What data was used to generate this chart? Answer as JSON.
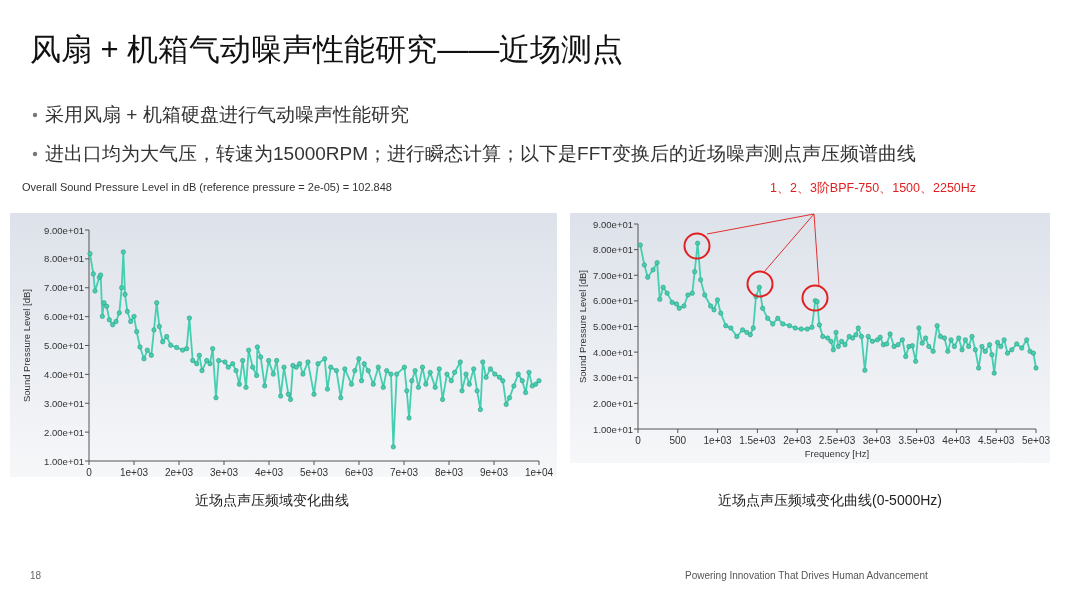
{
  "chart_data": [
    {
      "type": "line",
      "title": "风扇 + 机箱气动噪声性能研究——近场测点",
      "ylabel": "Sound Pressure Level [dB]",
      "annotations": [
        "采用风扇 + 机箱硬盘进行气动噪声性能研究",
        "进出口均为大气压，转速为15000RPM；进行瞬态计算；以下是FFT变换后的近场噪声测点声压频谱曲线",
        "Overall Sound Pressure Level in dB (reference pressure = 2e-05) = 102.848",
        "近场点声压频域变化曲线",
        "18",
        "Powering Innovation That Drives Human Advancement"
      ],
      "x": [
        22,
        96,
        133,
        230,
        259,
        296,
        333,
        393,
        452,
        526,
        600,
        674,
        726,
        763,
        800,
        852,
        926,
        1000,
        1059,
        1133,
        1222,
        1296,
        1385,
        1444,
        1504,
        1563,
        1637,
        1726,
        1815,
        1948,
        2081,
        2170,
        2230,
        2304,
        2393,
        2452,
        2511,
        2615,
        2689,
        2748,
        2822,
        2881,
        3022,
        3096,
        3193,
        3267,
        3341,
        3415,
        3489,
        3548,
        3637,
        3726,
        3741,
        3815,
        3904,
        3993,
        4096,
        4170,
        4259,
        4333,
        4430,
        4479,
        4531,
        4606,
        4680,
        4754,
        4866,
        5000,
        5089,
        5238,
        5298,
        5372,
        5498,
        5595,
        5685,
        5833,
        5908,
        5997,
        6057,
        6116,
        6205,
        6317,
        6429,
        6540,
        6615,
        6711,
        6763,
        6838,
        7009,
        7061,
        7113,
        7173,
        7247,
        7321,
        7411,
        7485,
        7582,
        7693,
        7783,
        7857,
        7954,
        8051,
        8125,
        8251,
        8289,
        8378,
        8452,
        8549,
        8624,
        8698,
        8750,
        8824,
        8921,
        9018,
        9122,
        9196,
        9271,
        9345,
        9442,
        9539,
        9628,
        9702,
        9777,
        9851,
        9926,
        10000
      ],
      "series": [
        {
          "color": "#45cfb0",
          "values": [
            81.8,
            74.8,
            68.9,
            73.6,
            74.4,
            60.1,
            64.8,
            63.6,
            58.9,
            57.2,
            58.3,
            61.3,
            70,
            82.4,
            67.7,
            61.8,
            58.3,
            60.1,
            54.8,
            49.5,
            45.4,
            48.4,
            46.6,
            55.4,
            64.8,
            56.6,
            51.3,
            53.1,
            50.1,
            49.3,
            48.4,
            48.9,
            59.5,
            44.8,
            43.7,
            46.6,
            41.3,
            44.8,
            43.7,
            48.9,
            31.9,
            44.8,
            44.3,
            42.5,
            43.7,
            41.3,
            36.6,
            44.8,
            35.5,
            48.4,
            42.5,
            39.6,
            49.5,
            46,
            36,
            44.8,
            40.1,
            44.8,
            32.5,
            42.5,
            33.1,
            31.3,
            43.1,
            42.5,
            43.7,
            40.1,
            44.3,
            33.1,
            43.7,
            45.4,
            34.9,
            42.5,
            41.3,
            31.9,
            41.9,
            36.6,
            41.3,
            45.4,
            37.8,
            43.7,
            41.3,
            36.6,
            42.5,
            35.5,
            41.3,
            40.1,
            14.9,
            40.1,
            42.5,
            34.3,
            24.9,
            37.8,
            41.3,
            35.5,
            42.5,
            36.6,
            40.7,
            35.5,
            41.9,
            31.3,
            40.1,
            37.8,
            40.7,
            44.3,
            34.3,
            40.1,
            36.6,
            41.9,
            34.3,
            27.8,
            44.3,
            39,
            41.9,
            40.1,
            39,
            37.8,
            29.6,
            31.9,
            36,
            40.1,
            37.8,
            33.7,
            40.7,
            36,
            36.6,
            37.8
          ]
        }
      ],
      "xlim": [
        0,
        10000
      ],
      "ylim": [
        10,
        90
      ],
      "xticks": [
        {
          "value": 0,
          "label": "0"
        },
        {
          "value": 1000,
          "label": "1e+03"
        },
        {
          "value": 2000,
          "label": "2e+03"
        },
        {
          "value": 3000,
          "label": "3e+03"
        },
        {
          "value": 4000,
          "label": "4e+03"
        },
        {
          "value": 5000,
          "label": "5e+03"
        },
        {
          "value": 6000,
          "label": "6e+03"
        },
        {
          "value": 7000,
          "label": "7e+03"
        },
        {
          "value": 8000,
          "label": "8e+03"
        },
        {
          "value": 9000,
          "label": "9e+03"
        },
        {
          "value": 10000,
          "label": "1e+04"
        }
      ],
      "yticks": [
        {
          "value": 10,
          "label": "1.00e+01"
        },
        {
          "value": 20,
          "label": "2.00e+01"
        },
        {
          "value": 30,
          "label": "3.00e+01"
        },
        {
          "value": 40,
          "label": "4.00e+01"
        },
        {
          "value": 50,
          "label": "5.00e+01"
        },
        {
          "value": 60,
          "label": "6.00e+01"
        },
        {
          "value": 70,
          "label": "7.00e+01"
        },
        {
          "value": 80,
          "label": "8.00e+01"
        },
        {
          "value": 90,
          "label": "9.00e+01"
        }
      ],
      "marker": "circle"
    },
    {
      "type": "line",
      "xlabel": "Frequency [Hz]",
      "ylabel": "Sound Pressure Level [dB]",
      "annotations": [
        "1、2、3阶BPF-750、1500、2250Hz",
        "近场点声压频域变化曲线(0-5000Hz)"
      ],
      "x": [
        29,
        80,
        122,
        189,
        240,
        274,
        316,
        366,
        429,
        484,
        518,
        577,
        627,
        682,
        712,
        749,
        787,
        838,
        912,
        955,
        998,
        1040,
        1103,
        1166,
        1242,
        1314,
        1368,
        1411,
        1448,
        1482,
        1524,
        1566,
        1629,
        1693,
        1756,
        1819,
        1903,
        1975,
        2051,
        2126,
        2185,
        2227,
        2250,
        2279,
        2321,
        2383,
        2425,
        2454,
        2488,
        2517,
        2558,
        2600,
        2654,
        2696,
        2738,
        2767,
        2808,
        2850,
        2892,
        2946,
        3008,
        3042,
        3083,
        3125,
        3167,
        3217,
        3267,
        3321,
        3363,
        3404,
        3446,
        3488,
        3529,
        3571,
        3613,
        3654,
        3708,
        3758,
        3800,
        3850,
        3892,
        3933,
        3975,
        4029,
        4071,
        4113,
        4154,
        4196,
        4238,
        4279,
        4321,
        4363,
        4417,
        4446,
        4475,
        4517,
        4558,
        4600,
        4642,
        4696,
        4758,
        4821,
        4883,
        4925,
        4967,
        5000
      ],
      "series": [
        {
          "color": "#45cfb0",
          "values": [
            81.8,
            74,
            69.2,
            72.1,
            74.9,
            60.6,
            65.3,
            63,
            59.4,
            58.8,
            57.1,
            58,
            62.3,
            63,
            71.4,
            82.5,
            68.2,
            62.3,
            58,
            56.5,
            60.4,
            55.2,
            50.3,
            49.4,
            46.1,
            48.7,
            47.7,
            46.8,
            49.4,
            61.7,
            65.3,
            57.1,
            53.2,
            51,
            53.2,
            51,
            50.3,
            49.4,
            49,
            49,
            49.7,
            60.1,
            59.7,
            50.6,
            46.1,
            45.5,
            44.2,
            40.9,
            47.7,
            42.2,
            44.2,
            42.9,
            46.1,
            45.5,
            46.8,
            49.4,
            46.1,
            32.9,
            46.1,
            44.2,
            44.8,
            45.8,
            42.9,
            43.2,
            47.1,
            42.2,
            42.9,
            44.8,
            38.3,
            42.2,
            42.5,
            36.4,
            49.4,
            43.5,
            45.5,
            42.2,
            40.3,
            50.3,
            46.1,
            45.5,
            40.3,
            44.8,
            42.2,
            45.5,
            40.9,
            44.8,
            42.2,
            46.1,
            40.9,
            33.8,
            42.2,
            40.3,
            42.9,
            39,
            31.8,
            43.8,
            42.2,
            44.8,
            39.6,
            40.9,
            43.2,
            41.6,
            44.8,
            40.3,
            39.6,
            33.8
          ]
        }
      ],
      "xlim": [
        0,
        5000
      ],
      "ylim": [
        10,
        90
      ],
      "xticks": [
        {
          "value": 0,
          "label": "0"
        },
        {
          "value": 500,
          "label": "500"
        },
        {
          "value": 1000,
          "label": "1e+03"
        },
        {
          "value": 1500,
          "label": "1.5e+03"
        },
        {
          "value": 2000,
          "label": "2e+03"
        },
        {
          "value": 2500,
          "label": "2.5e+03"
        },
        {
          "value": 3000,
          "label": "3e+03"
        },
        {
          "value": 3500,
          "label": "3.5e+03"
        },
        {
          "value": 4000,
          "label": "4e+03"
        },
        {
          "value": 4500,
          "label": "4.5e+03"
        },
        {
          "value": 5000,
          "label": "5e+03"
        }
      ],
      "yticks": [
        {
          "value": 10,
          "label": "1.00e+01"
        },
        {
          "value": 20,
          "label": "2.00e+01"
        },
        {
          "value": 30,
          "label": "3.00e+01"
        },
        {
          "value": 40,
          "label": "4.00e+01"
        },
        {
          "value": 50,
          "label": "5.00e+01"
        },
        {
          "value": 60,
          "label": "6.00e+01"
        },
        {
          "value": 70,
          "label": "7.00e+01"
        },
        {
          "value": 80,
          "label": "8.00e+01"
        },
        {
          "value": 90,
          "label": "9.00e+01"
        }
      ],
      "marker": "circle"
    }
  ]
}
